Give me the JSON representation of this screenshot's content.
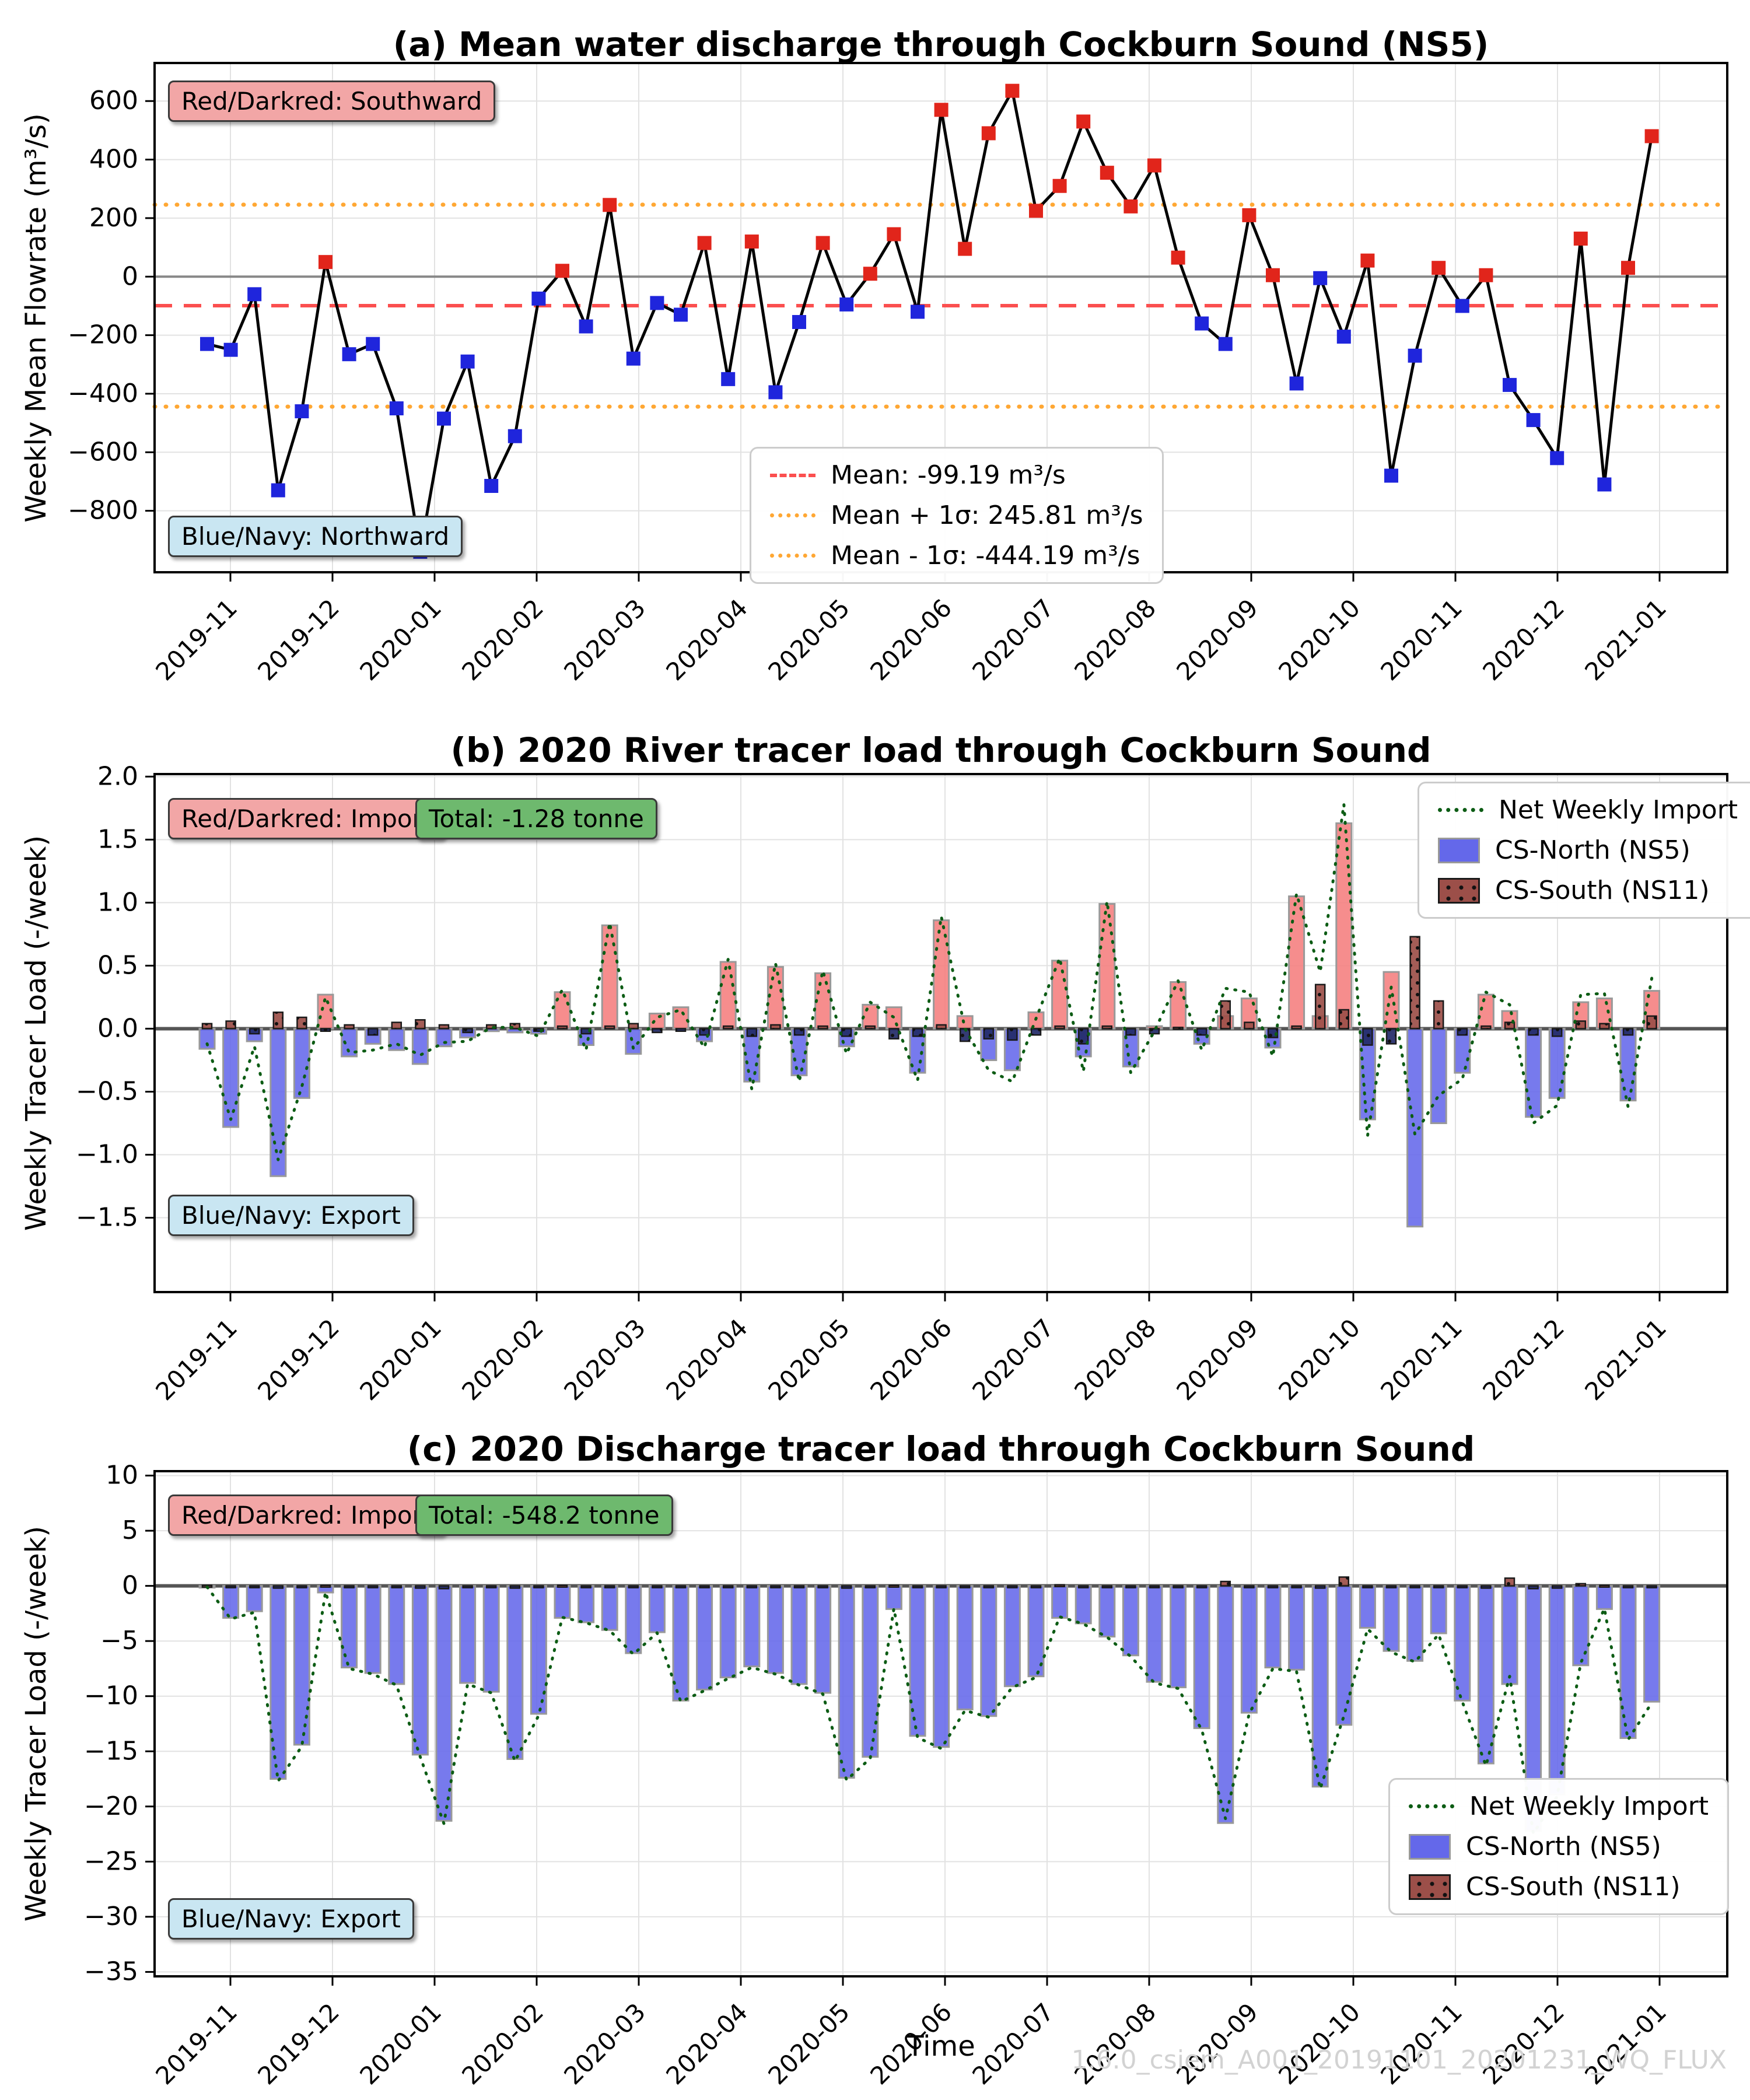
{
  "figure": {
    "xlabel": "Time",
    "watermark": "1.6.0_csiem_A001_20191101_20201231_WQ_FLUX"
  },
  "colors": {
    "southward": "#e1251b",
    "northward": "#1f25dc",
    "flow_line": "#000000",
    "mean_line": "#fb4f4f",
    "sigma_line": "#ffa733",
    "ns5_import": "#f57d7d",
    "ns5_export": "#6468ea",
    "ns11_import": "#9c4f49",
    "ns11_export": "#232a68",
    "net": "#0c5c14",
    "grid": "#e2e2e2",
    "zero_a": "#888888",
    "zero_bc": "#555555"
  },
  "chart_data": [
    {
      "type": "line",
      "title": "(a) Mean water discharge through Cockburn Sound (NS5)",
      "ylabel": "Weekly Mean Flowrate (m³/s)",
      "annotations": {
        "red_note": "Red/Darkred: Southward",
        "blue_note": "Blue/Navy: Northward"
      },
      "legend": [
        "Mean: -99.19 m³/s",
        "Mean + 1σ: 245.81 m³/s",
        "Mean - 1σ: -444.19 m³/s"
      ],
      "stat_lines": {
        "mean": -99.19,
        "mean_plus_sigma": 245.81,
        "mean_minus_sigma": -444.19
      },
      "x_ticks": [
        "2019-11",
        "2019-12",
        "2020-01",
        "2020-02",
        "2020-03",
        "2020-04",
        "2020-05",
        "2020-06",
        "2020-07",
        "2020-08",
        "2020-09",
        "2020-10",
        "2020-11",
        "2020-12",
        "2021-01"
      ],
      "y_tick_values": [
        600,
        400,
        200,
        0,
        -200,
        -400,
        -600,
        -800
      ],
      "y_tick_labels": [
        "600",
        "400",
        "200",
        "0",
        "−200",
        "−400",
        "−600",
        "−800"
      ],
      "ylim": [
        730,
        -1010
      ],
      "series": [
        {
          "name": "Weekly Mean Flowrate",
          "values": [
            -230,
            -250,
            -60,
            -730,
            -460,
            50,
            -265,
            -230,
            -450,
            -940,
            -485,
            -290,
            -715,
            -545,
            -75,
            20,
            -170,
            245,
            -280,
            -90,
            -130,
            115,
            -350,
            120,
            -395,
            -155,
            115,
            -95,
            10,
            145,
            -120,
            570,
            95,
            490,
            635,
            225,
            310,
            530,
            355,
            240,
            380,
            65,
            -160,
            -230,
            210,
            5,
            -365,
            -5,
            -205,
            55,
            -680,
            -270,
            30,
            -100,
            5,
            -370,
            -490,
            -620,
            130,
            -710,
            30,
            480
          ]
        }
      ]
    },
    {
      "type": "bar",
      "title": "(b) 2020 River tracer load through Cockburn Sound",
      "ylabel": "Weekly Tracer Load (-/week)",
      "annotations": {
        "red_note": "Red/Darkred: Import",
        "total_note": "Total: -1.28 tonne",
        "blue_note": "Blue/Navy: Export"
      },
      "legend": [
        "Net Weekly Import",
        "CS-North (NS5)",
        "CS-South (NS11)"
      ],
      "x_ticks": [
        "2019-11",
        "2019-12",
        "2020-01",
        "2020-02",
        "2020-03",
        "2020-04",
        "2020-05",
        "2020-06",
        "2020-07",
        "2020-08",
        "2020-09",
        "2020-10",
        "2020-11",
        "2020-12",
        "2021-01"
      ],
      "y_tick_values": [
        2.0,
        1.5,
        1.0,
        0.5,
        0.0,
        -0.5,
        -1.0,
        -1.5
      ],
      "y_tick_labels": [
        "2.0",
        "1.5",
        "1.0",
        "0.5",
        "0.0",
        "−0.5",
        "−1.0",
        "−1.5"
      ],
      "ylim": [
        2.02,
        -2.09
      ],
      "series": [
        {
          "name": "CS-North (NS5)",
          "values": [
            -0.16,
            -0.78,
            -0.1,
            -1.17,
            -0.55,
            0.27,
            -0.22,
            -0.12,
            -0.17,
            -0.28,
            -0.14,
            -0.07,
            -0.02,
            -0.03,
            -0.04,
            0.29,
            -0.13,
            0.82,
            -0.2,
            0.12,
            0.17,
            -0.1,
            0.53,
            -0.42,
            0.49,
            -0.37,
            0.44,
            -0.14,
            0.19,
            0.17,
            -0.35,
            0.86,
            0.1,
            -0.25,
            -0.33,
            0.13,
            0.54,
            -0.22,
            0.99,
            -0.3,
            0.02,
            0.37,
            -0.12,
            0.1,
            0.24,
            -0.15,
            1.05,
            0.1,
            1.63,
            -0.72,
            0.45,
            -1.57,
            -0.75,
            -0.35,
            0.27,
            0.14,
            -0.7,
            -0.55,
            0.21,
            0.24,
            -0.57,
            0.3
          ]
        },
        {
          "name": "CS-South (NS11)",
          "values": [
            0.04,
            0.06,
            -0.04,
            0.13,
            0.09,
            -0.02,
            0.03,
            -0.05,
            0.05,
            0.07,
            0.03,
            -0.03,
            0.03,
            0.04,
            -0.02,
            0.02,
            -0.04,
            0.02,
            0.04,
            -0.03,
            -0.02,
            -0.05,
            0.02,
            -0.06,
            0.03,
            -0.05,
            0.02,
            -0.06,
            0.02,
            -0.08,
            -0.06,
            0.03,
            -0.1,
            -0.08,
            -0.09,
            -0.05,
            0.02,
            -0.12,
            0.02,
            -0.05,
            -0.04,
            0.01,
            -0.05,
            0.22,
            0.05,
            -0.07,
            0.02,
            0.35,
            0.15,
            -0.13,
            -0.12,
            0.73,
            0.22,
            -0.05,
            0.02,
            0.05,
            -0.05,
            -0.06,
            0.06,
            0.04,
            -0.05,
            0.1
          ]
        }
      ],
      "net_series_note": "Net Weekly Import = CS-North + CS-South"
    },
    {
      "type": "bar",
      "title": "(c) 2020 Discharge tracer load through Cockburn Sound",
      "ylabel": "Weekly Tracer Load (-/week)",
      "annotations": {
        "red_note": "Red/Darkred: Import",
        "total_note": "Total: -548.2 tonne",
        "blue_note": "Blue/Navy: Export"
      },
      "legend": [
        "Net Weekly Import",
        "CS-North (NS5)",
        "CS-South (NS11)"
      ],
      "x_ticks": [
        "2019-11",
        "2019-12",
        "2020-01",
        "2020-02",
        "2020-03",
        "2020-04",
        "2020-05",
        "2020-06",
        "2020-07",
        "2020-08",
        "2020-09",
        "2020-10",
        "2020-11",
        "2020-12",
        "2021-01"
      ],
      "y_tick_values": [
        10,
        5,
        0,
        -5,
        -10,
        -15,
        -20,
        -25,
        -30,
        -35
      ],
      "y_tick_labels": [
        "10",
        "5",
        "0",
        "−5",
        "−10",
        "−15",
        "−20",
        "−25",
        "−30",
        "−35"
      ],
      "ylim": [
        10.4,
        -35.4
      ],
      "series": [
        {
          "name": "CS-North (NS5)",
          "values": [
            -0.15,
            -2.9,
            -2.3,
            -17.5,
            -14.4,
            -0.6,
            -7.4,
            -7.9,
            -8.9,
            -15.3,
            -21.3,
            -8.8,
            -9.6,
            -15.7,
            -11.6,
            -2.9,
            -3.3,
            -4.0,
            -6.1,
            -4.2,
            -10.4,
            -9.4,
            -8.3,
            -7.3,
            -7.9,
            -8.9,
            -9.7,
            -17.4,
            -15.5,
            -2.1,
            -13.6,
            -14.6,
            -11.2,
            -11.8,
            -9.1,
            -8.2,
            -2.9,
            -3.4,
            -4.6,
            -6.3,
            -8.7,
            -9.2,
            -12.9,
            -21.5,
            -11.5,
            -7.4,
            -7.6,
            -18.2,
            -12.6,
            -3.8,
            -5.9,
            -6.8,
            -4.3,
            -10.4,
            -16.1,
            -8.9,
            -22.2,
            -18.9,
            -7.2,
            -2.1,
            -13.8,
            -10.5
          ]
        },
        {
          "name": "CS-South (NS11)",
          "values": [
            0.05,
            -0.1,
            -0.1,
            -0.2,
            -0.15,
            0.05,
            -0.1,
            -0.1,
            -0.1,
            -0.2,
            -0.25,
            -0.1,
            -0.1,
            -0.2,
            -0.15,
            0.05,
            -0.05,
            -0.05,
            -0.1,
            -0.05,
            -0.1,
            -0.1,
            -0.1,
            -0.1,
            -0.1,
            -0.1,
            -0.1,
            -0.2,
            -0.15,
            0.05,
            -0.15,
            -0.15,
            -0.1,
            -0.1,
            -0.1,
            -0.1,
            0.1,
            -0.05,
            -0.05,
            -0.1,
            -0.1,
            -0.1,
            -0.15,
            0.4,
            -0.1,
            -0.1,
            -0.15,
            -0.2,
            0.8,
            -0.1,
            -0.1,
            -0.1,
            -0.1,
            -0.1,
            -0.2,
            0.7,
            -0.25,
            -0.2,
            0.2,
            0.05,
            -0.15,
            -0.1
          ]
        }
      ],
      "net_series_note": "Net Weekly Import = CS-North + CS-South"
    }
  ]
}
